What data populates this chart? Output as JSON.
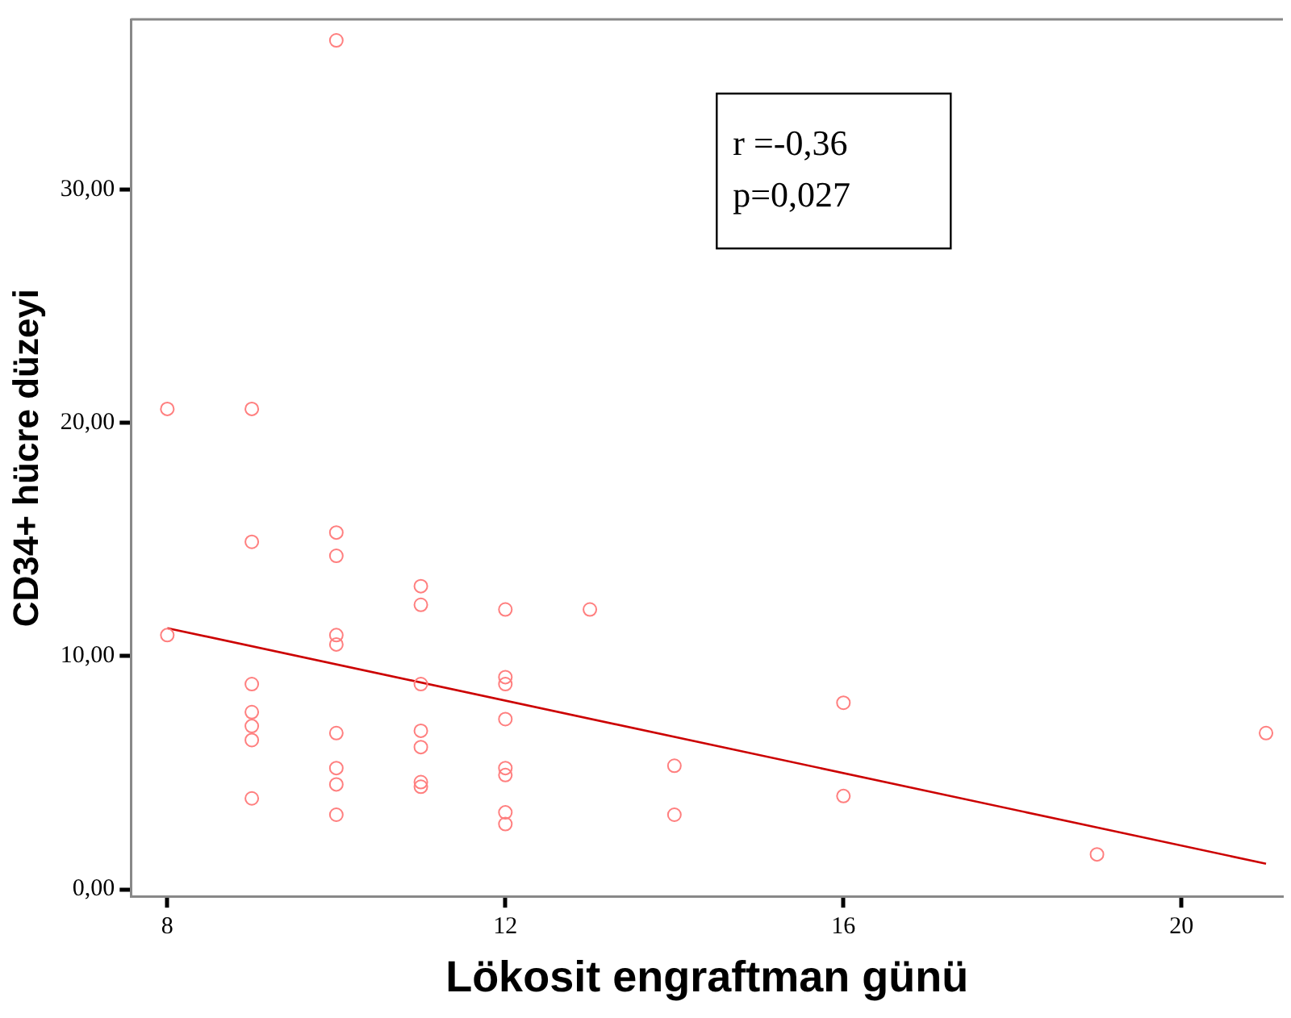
{
  "chart_data": {
    "type": "scatter",
    "xlabel": "Lökosit engraftman günü",
    "ylabel": "CD34+ hücre düzeyi",
    "xlim": [
      7.57,
      21.2
    ],
    "xticks": [
      8,
      12,
      16,
      20
    ],
    "ylim": [
      -0.3,
      37.3
    ],
    "yticks": [
      {
        "value": 0,
        "label": "0,00"
      },
      {
        "value": 10,
        "label": "10,00"
      },
      {
        "value": 20,
        "label": "20,00"
      },
      {
        "value": 30,
        "label": "30,00"
      }
    ],
    "grid": false,
    "legend": false,
    "marker": "circle",
    "annotations": [
      "r =-0,36",
      "p=0,027"
    ],
    "series": [
      {
        "color": "#ff7f7f",
        "x": [
          8,
          8,
          9,
          9,
          9,
          9,
          9,
          9,
          9,
          10,
          10,
          10,
          10,
          10,
          10,
          10,
          10,
          10,
          11,
          11,
          11,
          11,
          11,
          11,
          11,
          12,
          12,
          12,
          12,
          12,
          12,
          12,
          12,
          13,
          14,
          14,
          16,
          16,
          19,
          21
        ],
        "values": [
          20.6,
          10.9,
          20.6,
          14.9,
          8.8,
          7.6,
          7.0,
          6.4,
          3.9,
          36.4,
          15.3,
          14.3,
          10.9,
          10.5,
          6.7,
          5.2,
          4.5,
          3.2,
          13.0,
          12.2,
          8.8,
          6.8,
          6.1,
          4.6,
          4.4,
          12.0,
          9.1,
          8.8,
          7.3,
          5.2,
          4.9,
          3.3,
          2.8,
          12.0,
          5.3,
          3.2,
          8.0,
          4.0,
          1.5,
          6.7
        ]
      },
      {
        "type": "line",
        "color": "#cc0000",
        "x": [
          8,
          21
        ],
        "values": [
          11.2,
          1.1
        ],
        "marker": "none",
        "line_style": "solid"
      }
    ]
  }
}
